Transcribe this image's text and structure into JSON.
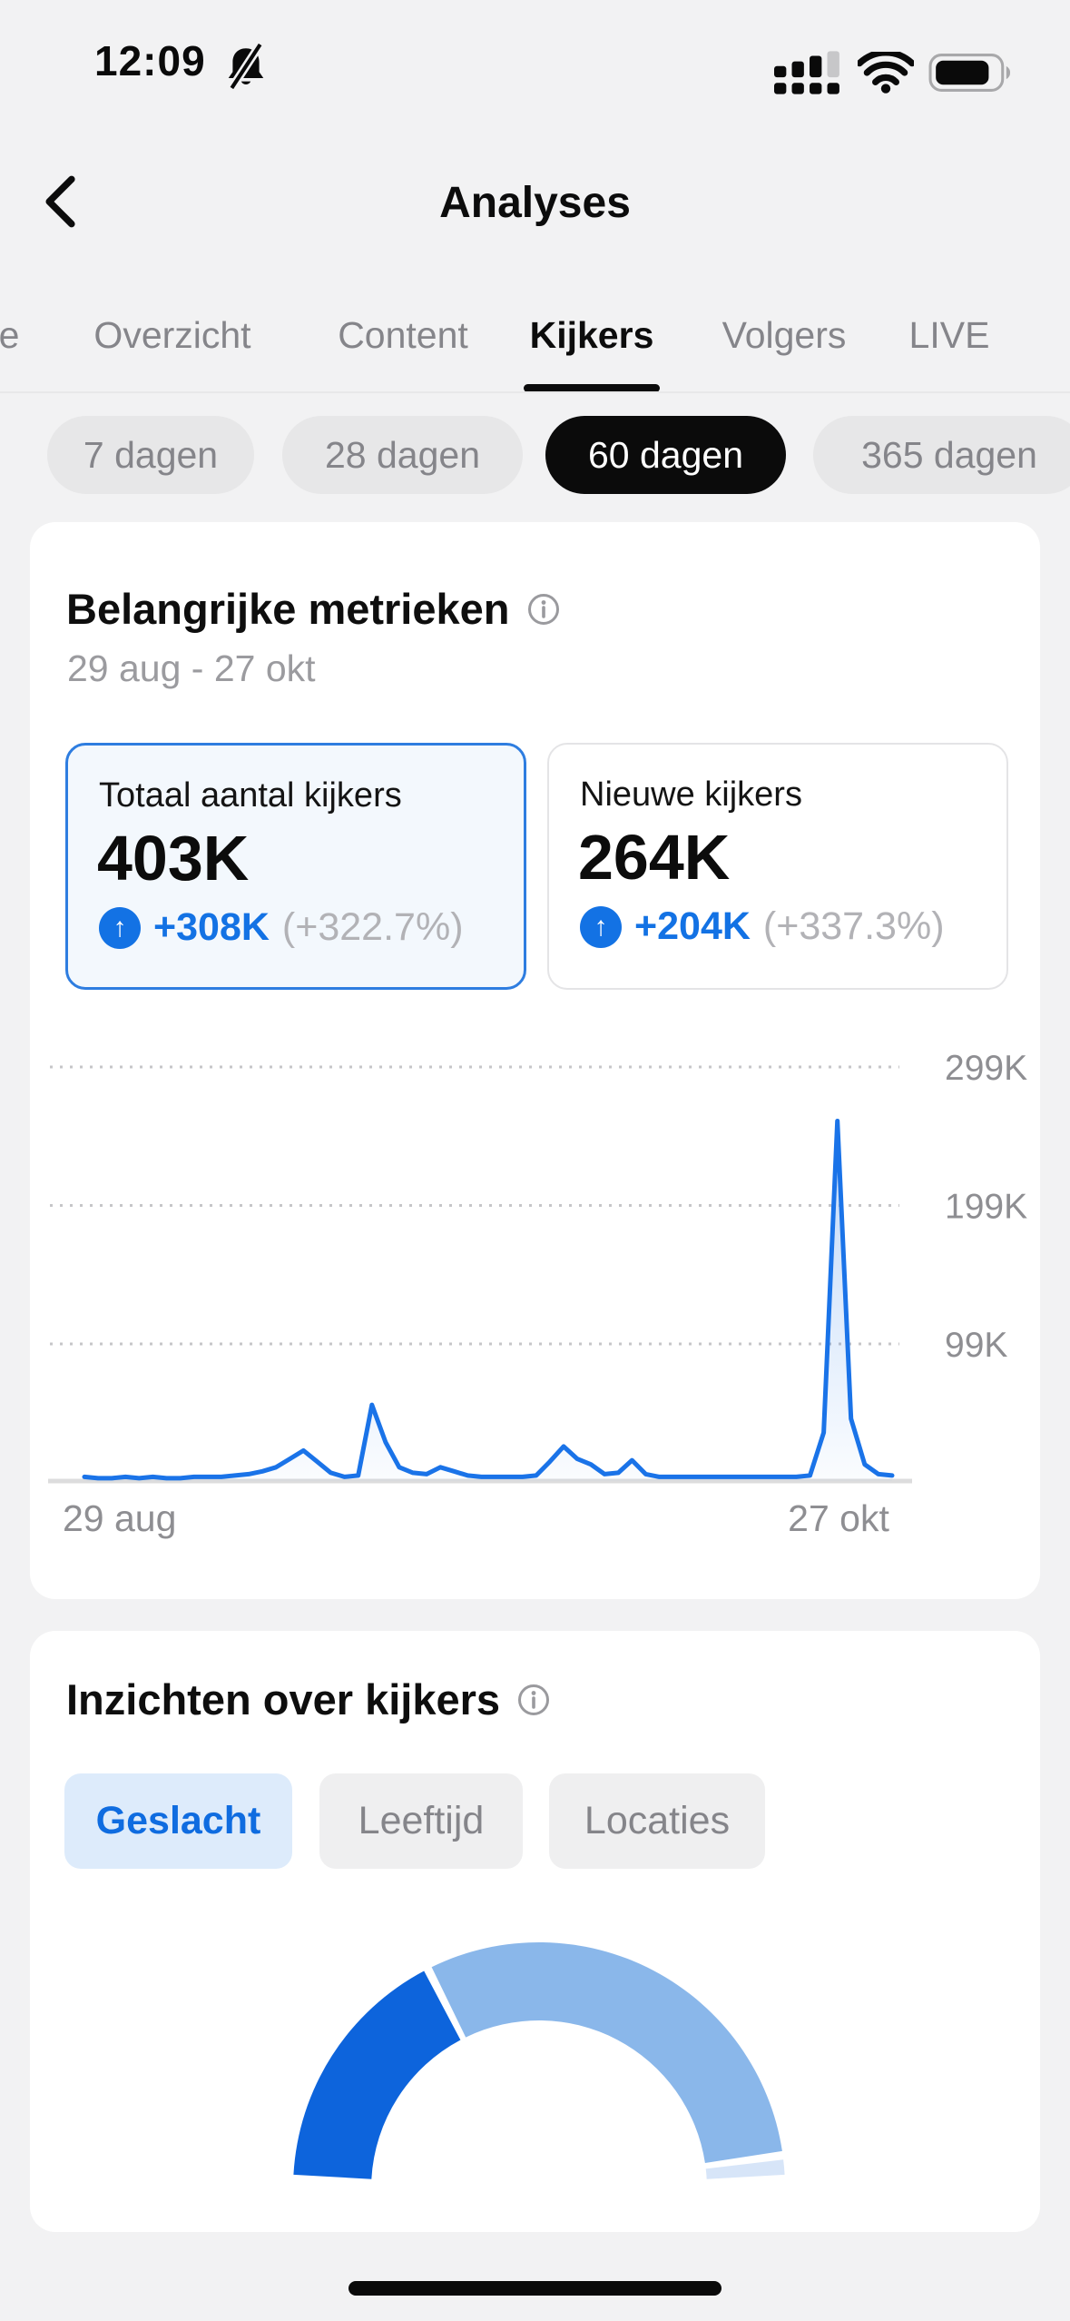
{
  "status_bar": {
    "time": "12:09"
  },
  "header": {
    "title": "Analyses"
  },
  "tabs": {
    "items": [
      {
        "label": "e",
        "active": false
      },
      {
        "label": "Overzicht",
        "active": false
      },
      {
        "label": "Content",
        "active": false
      },
      {
        "label": "Kijkers",
        "active": true
      },
      {
        "label": "Volgers",
        "active": false
      },
      {
        "label": "LIVE",
        "active": false
      }
    ]
  },
  "range_pills": [
    {
      "label": "7 dagen",
      "active": false
    },
    {
      "label": "28 dagen",
      "active": false
    },
    {
      "label": "60 dagen",
      "active": true
    },
    {
      "label": "365 dagen",
      "active": false
    }
  ],
  "key_metrics": {
    "title": "Belangrijke metrieken",
    "date_range": "29 aug - 27 okt",
    "cards": [
      {
        "label": "Totaal aantal kijkers",
        "value": "403K",
        "delta": "+308K",
        "delta_pct": "(+322.7%)",
        "selected": true
      },
      {
        "label": "Nieuwe kijkers",
        "value": "264K",
        "delta": "+204K",
        "delta_pct": "(+337.3%)",
        "selected": false
      }
    ]
  },
  "insights": {
    "title": "Inzichten over kijkers",
    "pills": [
      {
        "label": "Geslacht",
        "active": true
      },
      {
        "label": "Leeftijd",
        "active": false
      },
      {
        "label": "Locaties",
        "active": false
      }
    ]
  },
  "chart_data": [
    {
      "type": "line",
      "title": "Belangrijke metrieken - Totaal aantal kijkers per dag",
      "x_start_label": "29 aug",
      "x_end_label": "27 okt",
      "y_ticks": [
        "299K",
        "199K",
        "99K"
      ],
      "y_tick_values": [
        299,
        199,
        99
      ],
      "unit": "K",
      "ylim": [
        0,
        320
      ],
      "grid": "dotted-horizontal",
      "line_color": "#1a73e8",
      "values_k": [
        3,
        2,
        2,
        3,
        2,
        3,
        2,
        2,
        3,
        3,
        3,
        4,
        5,
        7,
        10,
        16,
        22,
        14,
        6,
        3,
        4,
        55,
        28,
        10,
        6,
        5,
        10,
        7,
        4,
        3,
        3,
        3,
        3,
        4,
        14,
        25,
        16,
        12,
        5,
        6,
        15,
        5,
        3,
        3,
        3,
        3,
        3,
        3,
        3,
        3,
        3,
        3,
        3,
        4,
        35,
        260,
        45,
        12,
        5,
        4
      ]
    },
    {
      "type": "pie",
      "subtype": "semicircle-gauge",
      "title": "Geslacht verdeling kijkers",
      "legend": false,
      "segments": [
        {
          "name": "segment-1",
          "pct": 34.5,
          "color": "#0d64dc"
        },
        {
          "name": "segment-2",
          "pct": 62.9,
          "color": "#8ab7ea"
        },
        {
          "name": "segment-3",
          "pct": 2.6,
          "color": "#d7e5f8"
        }
      ]
    }
  ],
  "colors": {
    "background": "#f2f2f3",
    "accent_blue": "#1372e4",
    "selected_card_border": "#2e7de0",
    "selected_card_bg": "#f3f8fd",
    "pill_active_bg": "#0b0b0b",
    "insight_pill_active_bg": "#ddebfb",
    "insight_pill_active_text": "#0f6ce0"
  }
}
